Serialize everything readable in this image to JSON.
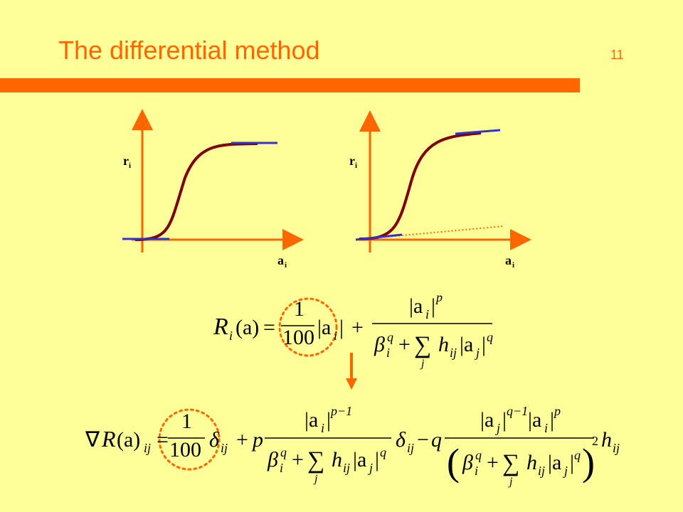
{
  "header": {
    "title": "The differential method",
    "page_number": "11"
  },
  "plots": [
    {
      "y_label": "r",
      "y_sub": "i",
      "x_label": "a",
      "x_sub": "i"
    },
    {
      "y_label": "r",
      "y_sub": "i",
      "x_label": "a",
      "x_sub": "i"
    }
  ],
  "formulas": [
    {
      "tokens": [
        "R",
        "i",
        "(a)",
        "=",
        "1",
        "100",
        "|a",
        "i",
        "|",
        "+",
        "|a",
        "i",
        "|",
        "p",
        "β",
        "i",
        "q",
        "+",
        "∑",
        "j",
        "h",
        "ij",
        "|a",
        "j",
        "|",
        "q"
      ]
    },
    {
      "tokens": [
        "∇",
        "R",
        "(a)",
        "ij",
        "=",
        "1",
        "100",
        "δ",
        "ij",
        "+",
        "p",
        "|a",
        "i",
        "|",
        "p−1",
        "β",
        "i",
        "q",
        "+",
        "∑",
        "j",
        "h",
        "ij",
        "|a",
        "j",
        "|",
        "q",
        "δ",
        "ij",
        "−",
        "q",
        "|a",
        "j",
        "|",
        "q−1",
        "|a",
        "i",
        "|",
        "p",
        "(",
        "β",
        "i",
        "q",
        "+",
        "∑",
        "j",
        "h",
        "ij",
        "|a",
        "j",
        "|",
        "q",
        ")",
        "2",
        "h",
        "ij"
      ]
    }
  ]
}
